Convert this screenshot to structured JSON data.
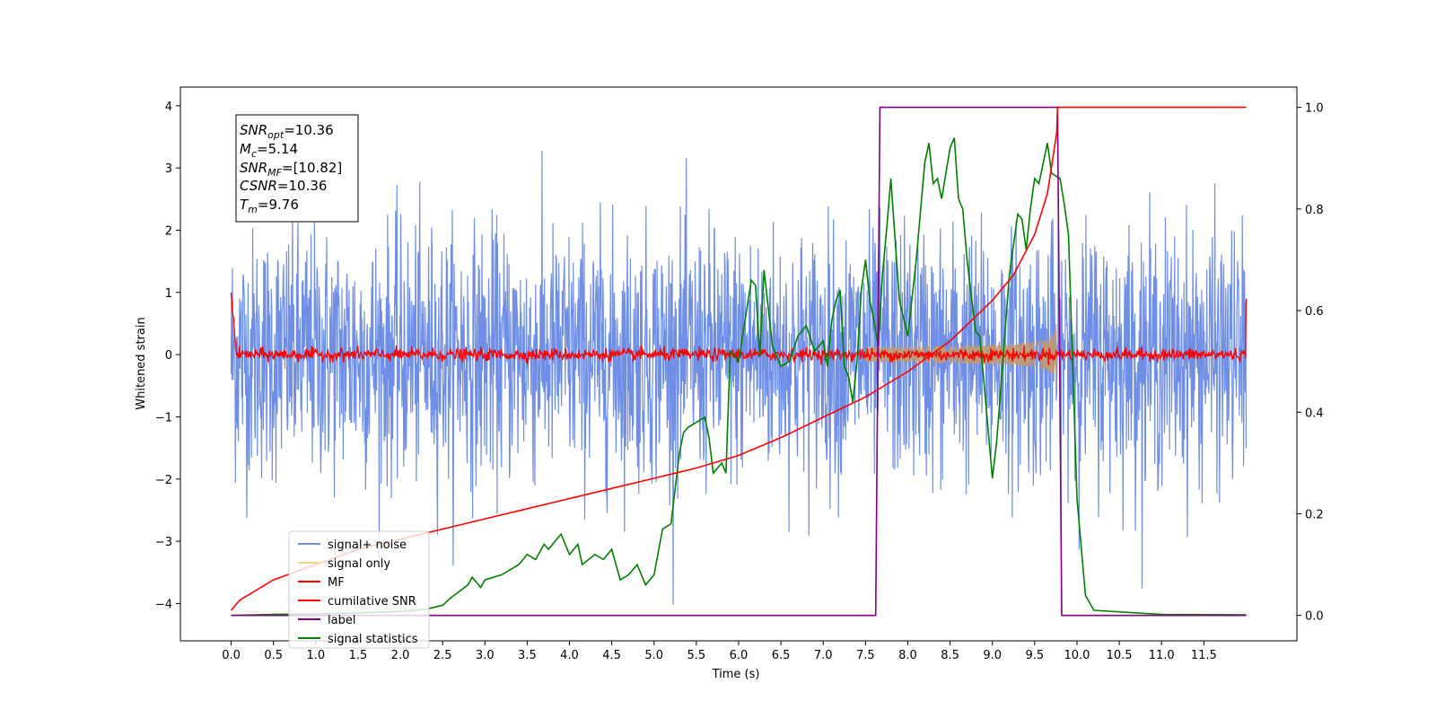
{
  "chart_data": {
    "type": "line",
    "xlabel": "Time (s)",
    "ylabel": "Whitened strain",
    "xlim": [
      -0.6,
      12.6
    ],
    "ylim": [
      -4.6,
      4.3
    ],
    "ylim_right": [
      -0.05,
      1.04
    ],
    "xticks": [
      "0.0",
      "0.5",
      "1.0",
      "1.5",
      "2.0",
      "2.5",
      "3.0",
      "3.5",
      "4.0",
      "4.5",
      "5.0",
      "5.5",
      "6.0",
      "6.5",
      "7.0",
      "7.5",
      "8.0",
      "8.5",
      "9.0",
      "9.5",
      "10.0",
      "10.5",
      "11.0",
      "11.5"
    ],
    "yticks_left": [
      "4",
      "3",
      "2",
      "1",
      "0",
      "−1",
      "−2",
      "−3",
      "−4"
    ],
    "yticks_right": [
      "1.0",
      "0.8",
      "0.6",
      "0.4",
      "0.2",
      "0.0"
    ],
    "info_box": {
      "lines": [
        {
          "main": "SNR",
          "sub": "opt",
          "rest": "=10.36"
        },
        {
          "main": "M",
          "sub": "c",
          "rest": "=5.14"
        },
        {
          "main": "SNR",
          "sub": "MF",
          "rest": "=[10.82]"
        },
        {
          "main": "CSNR",
          "sub": "",
          "rest": "=10.36"
        },
        {
          "main": "T",
          "sub": "m",
          "rest": "=9.76"
        }
      ]
    },
    "legend": [
      {
        "label": "signal+ noise",
        "color": "#6f8fe6"
      },
      {
        "label": "signal only",
        "color": "#ffd28a"
      },
      {
        "label": "MF",
        "color": "#ff0000"
      },
      {
        "label": "cumilative SNR",
        "color": "#ff0000"
      },
      {
        "label": "label",
        "color": "#800080"
      },
      {
        "label": "signal statistics",
        "color": "#008000"
      }
    ],
    "legend_position": "lower-left",
    "series": [
      {
        "name": "signal+ noise",
        "axis": "left",
        "kind": "noise",
        "x_range": [
          0,
          12
        ],
        "amplitude_sd": 1.0,
        "color": "#6f8fe6"
      },
      {
        "name": "signal only",
        "axis": "left",
        "kind": "chirp",
        "x_range": [
          7.5,
          9.76
        ],
        "peak_amplitude": 0.9,
        "color": "#c29a6e"
      },
      {
        "name": "MF",
        "axis": "left",
        "kind": "noise",
        "x_range": [
          0,
          12
        ],
        "amplitude_sd": 0.05,
        "end_values": [
          1.0,
          0.9
        ],
        "color": "#ff0000"
      },
      {
        "name": "cumilative SNR",
        "axis": "right",
        "x": [
          0.0,
          0.1,
          0.5,
          1.0,
          1.5,
          2.0,
          2.5,
          3.0,
          3.5,
          4.0,
          4.5,
          5.0,
          5.5,
          6.0,
          6.5,
          7.0,
          7.5,
          8.0,
          8.5,
          9.0,
          9.25,
          9.5,
          9.65,
          9.76,
          9.77,
          12.0
        ],
        "y": [
          0.01,
          0.03,
          0.07,
          0.1,
          0.13,
          0.15,
          0.17,
          0.19,
          0.21,
          0.23,
          0.25,
          0.27,
          0.29,
          0.315,
          0.35,
          0.39,
          0.43,
          0.48,
          0.54,
          0.62,
          0.67,
          0.75,
          0.83,
          0.95,
          1.0,
          1.0
        ],
        "color": "#ff0000"
      },
      {
        "name": "label",
        "axis": "right",
        "x": [
          0.0,
          7.62,
          7.67,
          9.77,
          9.82,
          12.0
        ],
        "y": [
          0.0,
          0.0,
          1.0,
          1.0,
          0.0,
          0.0
        ],
        "color": "#800080"
      },
      {
        "name": "signal statistics",
        "axis": "right",
        "x": [
          0.0,
          0.5,
          1.0,
          1.5,
          2.0,
          2.3,
          2.5,
          2.6,
          2.8,
          2.85,
          2.95,
          3.0,
          3.1,
          3.2,
          3.3,
          3.4,
          3.5,
          3.6,
          3.7,
          3.75,
          3.8,
          3.9,
          4.0,
          4.1,
          4.15,
          4.3,
          4.4,
          4.5,
          4.6,
          4.7,
          4.8,
          4.9,
          5.0,
          5.1,
          5.2,
          5.3,
          5.35,
          5.4,
          5.5,
          5.6,
          5.65,
          5.7,
          5.8,
          5.85,
          5.9,
          6.0,
          6.15,
          6.2,
          6.25,
          6.3,
          6.4,
          6.5,
          6.6,
          6.7,
          6.8,
          6.9,
          7.0,
          7.05,
          7.1,
          7.15,
          7.2,
          7.25,
          7.3,
          7.35,
          7.4,
          7.45,
          7.5,
          7.55,
          7.6,
          7.65,
          7.7,
          7.75,
          7.8,
          7.9,
          8.0,
          8.1,
          8.2,
          8.25,
          8.3,
          8.35,
          8.4,
          8.5,
          8.55,
          8.6,
          8.65,
          8.7,
          8.8,
          8.85,
          8.9,
          9.0,
          9.05,
          9.1,
          9.2,
          9.3,
          9.35,
          9.4,
          9.45,
          9.5,
          9.55,
          9.6,
          9.65,
          9.7,
          9.8,
          9.85,
          9.9,
          10.0,
          10.1,
          10.2,
          11.0,
          12.0
        ],
        "y": [
          0.0,
          0.002,
          0.003,
          0.005,
          0.008,
          0.012,
          0.02,
          0.035,
          0.06,
          0.075,
          0.055,
          0.07,
          0.075,
          0.08,
          0.09,
          0.1,
          0.12,
          0.11,
          0.14,
          0.13,
          0.14,
          0.16,
          0.12,
          0.14,
          0.1,
          0.12,
          0.11,
          0.13,
          0.07,
          0.08,
          0.1,
          0.06,
          0.08,
          0.17,
          0.18,
          0.32,
          0.36,
          0.37,
          0.38,
          0.39,
          0.35,
          0.28,
          0.3,
          0.28,
          0.52,
          0.5,
          0.66,
          0.65,
          0.51,
          0.68,
          0.53,
          0.49,
          0.5,
          0.55,
          0.57,
          0.52,
          0.54,
          0.49,
          0.58,
          0.62,
          0.64,
          0.49,
          0.47,
          0.42,
          0.5,
          0.64,
          0.7,
          0.62,
          0.58,
          0.53,
          0.67,
          0.76,
          0.86,
          0.62,
          0.55,
          0.7,
          0.89,
          0.93,
          0.85,
          0.86,
          0.82,
          0.92,
          0.94,
          0.82,
          0.8,
          0.7,
          0.56,
          0.55,
          0.46,
          0.27,
          0.34,
          0.45,
          0.67,
          0.79,
          0.78,
          0.72,
          0.8,
          0.86,
          0.85,
          0.89,
          0.93,
          0.87,
          0.86,
          0.81,
          0.75,
          0.23,
          0.04,
          0.01,
          0.002,
          0.001
        ],
        "color": "#008000"
      }
    ]
  }
}
